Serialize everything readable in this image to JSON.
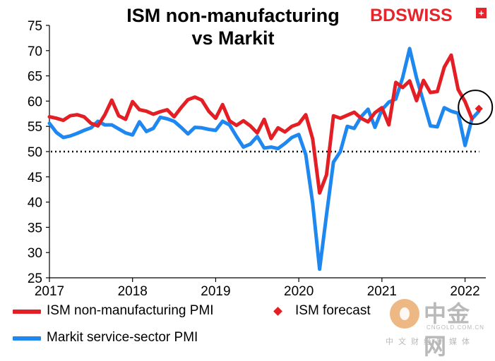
{
  "chart_data": {
    "type": "line",
    "title_lines": [
      "ISM non-manufacturing",
      "vs Markit"
    ],
    "xlabel": "",
    "ylabel": "",
    "x_ticks": [
      "2017",
      "2018",
      "2019",
      "2020",
      "2021",
      "2022"
    ],
    "y_ticks": [
      "25",
      "30",
      "35",
      "40",
      "45",
      "50",
      "55",
      "60",
      "65",
      "70",
      "75"
    ],
    "ylim": [
      25,
      75
    ],
    "xlim": [
      2017.0,
      2022.25
    ],
    "grid": false,
    "legend": "bottom",
    "colors": {
      "ism": "#e31e24",
      "markit": "#1e88f0",
      "forecast": "#e31e24",
      "reference": "#000000"
    },
    "reference_line": {
      "y": 50,
      "style": "dotted"
    },
    "annotation": {
      "shape": "circle",
      "around": "ISM forecast (2022-03)"
    },
    "series": [
      {
        "name": "ISM non-manufacturing PMI",
        "color": "#e31e24",
        "start": "2017-01",
        "values": [
          56.9,
          56.6,
          56.2,
          57.1,
          57.3,
          56.9,
          55.6,
          55.1,
          57.3,
          60.2,
          57.1,
          56.4,
          59.9,
          58.3,
          58.0,
          57.4,
          57.9,
          58.3,
          56.9,
          58.7,
          60.3,
          60.8,
          60.2,
          58.0,
          56.6,
          59.3,
          56.1,
          55.2,
          56.1,
          55.1,
          53.7,
          56.4,
          52.6,
          54.7,
          53.9,
          55.0,
          55.5,
          57.3,
          52.5,
          41.8,
          45.4,
          57.1,
          56.6,
          57.2,
          57.8,
          56.6,
          55.9,
          57.7,
          58.7,
          55.3,
          63.7,
          62.7,
          64.0,
          60.1,
          64.1,
          61.7,
          61.9,
          66.7,
          69.1,
          62.3,
          59.9,
          56.5
        ]
      },
      {
        "name": "Markit service-sector PMI",
        "color": "#1e88f0",
        "start": "2017-01",
        "values": [
          55.6,
          53.8,
          52.8,
          53.1,
          53.6,
          54.2,
          54.7,
          56.0,
          55.3,
          55.3,
          54.5,
          53.7,
          53.3,
          55.9,
          54.0,
          54.6,
          56.8,
          56.5,
          56.0,
          54.8,
          53.5,
          54.8,
          54.7,
          54.4,
          54.2,
          56.0,
          55.3,
          53.0,
          50.9,
          51.5,
          53.0,
          50.7,
          50.9,
          50.6,
          51.6,
          52.8,
          53.4,
          49.4,
          39.8,
          26.7,
          37.5,
          47.9,
          50.0,
          55.0,
          54.6,
          56.9,
          58.4,
          54.8,
          58.3,
          59.8,
          60.4,
          64.7,
          70.4,
          64.6,
          59.9,
          55.1,
          54.9,
          58.7,
          58.0,
          57.6,
          51.2,
          56.5,
          58.0
        ]
      }
    ],
    "forecast": {
      "name": "ISM forecast",
      "date": "2022-03",
      "value": 58.5
    }
  },
  "brand": {
    "prefix": "BD",
    "suffix": "SWISS",
    "cross": "+"
  },
  "legend_labels": {
    "ism": "ISM non-manufacturing PMI",
    "forecast": "ISM forecast",
    "markit": "Markit service-sector PMI"
  },
  "watermark": {
    "title": "中金网",
    "url": "CNGOLD.COM.CN",
    "sub": "中文财经新媒体"
  }
}
